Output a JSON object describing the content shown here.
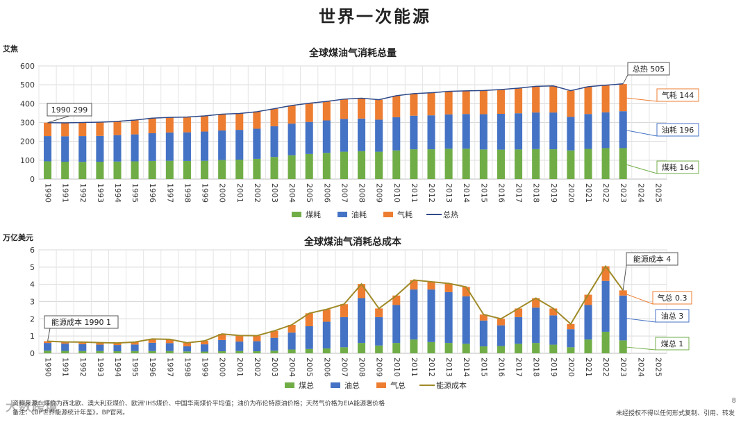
{
  "page": {
    "title": "世界一次能源",
    "page_number": "8"
  },
  "footer": {
    "source_line1": "资料来源：煤价为西北欧、澳大利亚煤价、欧洲'IHS煤价、中国华南煤价平均值；油价为布伦特原油价格；天然气价格为EIA能源署价格",
    "source_line2": "备注：《BP世界能源统计年鉴》，BP官网。",
    "notice": "未经授权不得以任何形式复制、引用、转发",
    "watermark": "大数跨境"
  },
  "colors": {
    "coal": "#70ad47",
    "oil": "#4472c4",
    "gas": "#ed7d31",
    "total1": "#2f4a8a",
    "total2": "#a08a28"
  },
  "chart_data": [
    {
      "type": "bar",
      "stacked": true,
      "title": "全球煤油气消耗总量",
      "unit": "艾焦",
      "ylim": [
        0,
        600
      ],
      "yticks": [
        0,
        100,
        200,
        300,
        400,
        500,
        600
      ],
      "categories": [
        "1990",
        "1991",
        "1992",
        "1993",
        "1994",
        "1995",
        "1996",
        "1997",
        "1998",
        "1999",
        "2000",
        "2001",
        "2002",
        "2003",
        "2004",
        "2005",
        "2006",
        "2007",
        "2008",
        "2009",
        "2010",
        "2011",
        "2012",
        "2013",
        "2014",
        "2015",
        "2016",
        "2017",
        "2018",
        "2019",
        "2020",
        "2021",
        "2022",
        "2023",
        "2024",
        "2025"
      ],
      "series": [
        {
          "name": "煤耗",
          "color": "#70ad47",
          "values": [
            94,
            92,
            91,
            92,
            93,
            94,
            96,
            97,
            96,
            97,
            101,
            103,
            107,
            117,
            126,
            133,
            139,
            145,
            148,
            145,
            152,
            158,
            158,
            161,
            161,
            157,
            156,
            157,
            159,
            158,
            152,
            160,
            164,
            164,
            null,
            null
          ]
        },
        {
          "name": "油耗",
          "color": "#4472c4",
          "values": [
            134,
            135,
            137,
            137,
            140,
            143,
            147,
            150,
            152,
            155,
            157,
            158,
            160,
            163,
            168,
            170,
            172,
            174,
            173,
            170,
            176,
            178,
            180,
            182,
            184,
            187,
            190,
            192,
            194,
            195,
            178,
            185,
            190,
            196,
            null,
            null
          ]
        },
        {
          "name": "气耗",
          "color": "#ed7d31",
          "values": [
            71,
            71,
            72,
            73,
            73,
            76,
            80,
            80,
            81,
            83,
            86,
            87,
            90,
            93,
            96,
            99,
            101,
            105,
            108,
            106,
            114,
            117,
            120,
            122,
            123,
            126,
            129,
            133,
            139,
            141,
            139,
            145,
            144,
            144,
            null,
            null
          ]
        }
      ],
      "line": {
        "name": "总热",
        "color": "#2f4a8a",
        "values": [
          299,
          298,
          300,
          302,
          306,
          313,
          323,
          327,
          329,
          335,
          344,
          348,
          357,
          373,
          390,
          402,
          412,
          424,
          429,
          421,
          442,
          453,
          458,
          465,
          468,
          470,
          475,
          482,
          492,
          494,
          469,
          490,
          498,
          505,
          null,
          null
        ]
      },
      "legend": [
        "煤耗",
        "油耗",
        "气耗",
        "总热"
      ],
      "annotations": [
        {
          "text": "1990 299",
          "index": 0,
          "series": "total"
        },
        {
          "text": "总热 505",
          "index": 33,
          "series": "total"
        },
        {
          "text": "气耗 144",
          "index": 33,
          "series": "gas"
        },
        {
          "text": "油耗 196",
          "index": 33,
          "series": "oil"
        },
        {
          "text": "煤耗 164",
          "index": 33,
          "series": "coal"
        }
      ]
    },
    {
      "type": "bar",
      "stacked": true,
      "title": "全球煤油气消耗总成本",
      "unit": "万亿美元",
      "ylim": [
        0,
        6
      ],
      "yticks": [
        0,
        1,
        2,
        3,
        4,
        5,
        6
      ],
      "categories": [
        "1990",
        "1991",
        "1992",
        "1993",
        "1994",
        "1995",
        "1996",
        "1997",
        "1998",
        "1999",
        "2000",
        "2001",
        "2002",
        "2003",
        "2004",
        "2005",
        "2006",
        "2007",
        "2008",
        "2009",
        "2010",
        "2011",
        "2012",
        "2013",
        "2014",
        "2015",
        "2016",
        "2017",
        "2018",
        "2019",
        "2020",
        "2021",
        "2022",
        "2023",
        "2024",
        "2025"
      ],
      "series": [
        {
          "name": "煤总",
          "color": "#70ad47",
          "values": [
            0.15,
            0.14,
            0.13,
            0.13,
            0.12,
            0.13,
            0.13,
            0.13,
            0.11,
            0.1,
            0.12,
            0.13,
            0.12,
            0.15,
            0.22,
            0.25,
            0.28,
            0.35,
            0.6,
            0.45,
            0.6,
            0.8,
            0.65,
            0.6,
            0.55,
            0.4,
            0.42,
            0.55,
            0.6,
            0.5,
            0.35,
            0.8,
            1.25,
            0.75,
            null,
            null
          ]
        },
        {
          "name": "油总",
          "color": "#4472c4",
          "values": [
            0.45,
            0.42,
            0.4,
            0.37,
            0.36,
            0.38,
            0.48,
            0.46,
            0.3,
            0.42,
            0.65,
            0.55,
            0.58,
            0.75,
            0.98,
            1.32,
            1.55,
            1.75,
            2.6,
            1.65,
            2.2,
            2.9,
            3.05,
            2.95,
            2.75,
            1.5,
            1.2,
            1.55,
            2.05,
            1.7,
            1.05,
            2.0,
            2.95,
            2.6,
            null,
            null
          ]
        },
        {
          "name": "气总",
          "color": "#ed7d31",
          "values": [
            0.1,
            0.1,
            0.12,
            0.12,
            0.12,
            0.14,
            0.22,
            0.22,
            0.2,
            0.2,
            0.35,
            0.35,
            0.32,
            0.4,
            0.45,
            0.75,
            0.72,
            0.75,
            0.82,
            0.5,
            0.55,
            0.55,
            0.45,
            0.5,
            0.55,
            0.35,
            0.38,
            0.5,
            0.55,
            0.4,
            0.3,
            0.6,
            0.85,
            0.3,
            null,
            null
          ]
        }
      ],
      "line": {
        "name": "能源成本",
        "color": "#a08a28",
        "values": [
          0.7,
          0.66,
          0.65,
          0.62,
          0.6,
          0.65,
          0.83,
          0.81,
          0.61,
          0.72,
          1.12,
          1.03,
          1.02,
          1.3,
          1.65,
          2.32,
          2.55,
          2.85,
          4.02,
          2.6,
          3.35,
          4.25,
          4.15,
          4.05,
          3.85,
          2.25,
          2.0,
          2.6,
          3.2,
          2.6,
          1.7,
          3.4,
          5.05,
          3.65,
          null,
          null
        ]
      },
      "legend": [
        "煤总",
        "油总",
        "气总",
        "能源成本"
      ],
      "annotations": [
        {
          "text": "能源成本 1990 1",
          "index": 0,
          "series": "total"
        },
        {
          "text": "能源成本 4",
          "index": 33,
          "series": "total"
        },
        {
          "text": "气总 0.3",
          "index": 33,
          "series": "gas"
        },
        {
          "text": "油总 3",
          "index": 33,
          "series": "oil"
        },
        {
          "text": "煤总 1",
          "index": 33,
          "series": "coal"
        }
      ]
    }
  ]
}
